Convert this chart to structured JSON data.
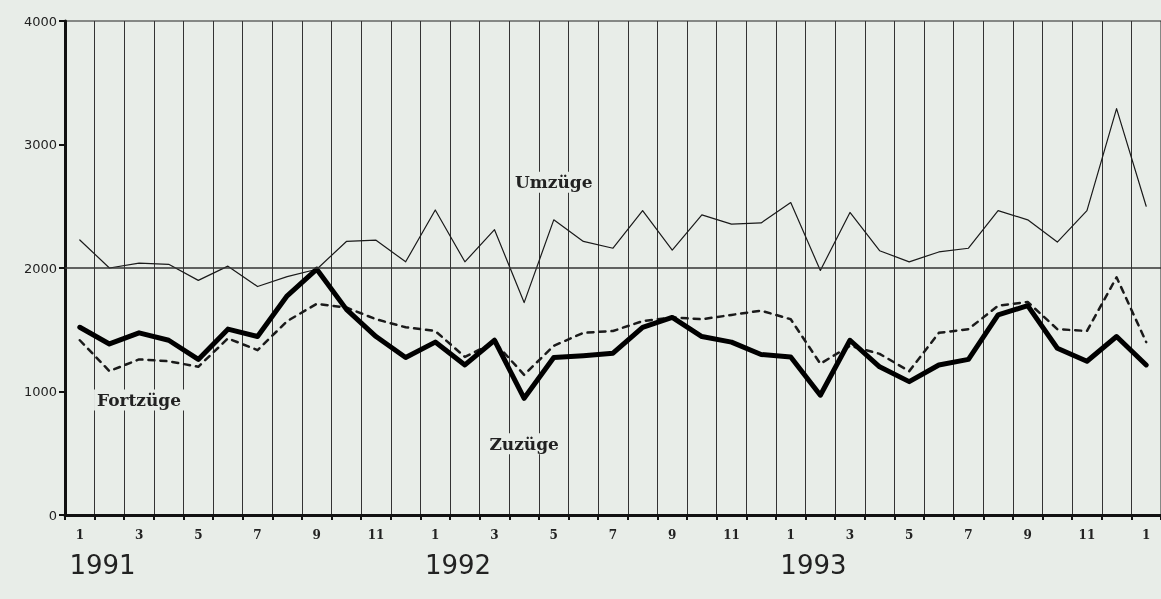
{
  "chart_data": {
    "type": "line",
    "categories": [
      "1",
      null,
      "3",
      null,
      "5",
      null,
      "7",
      null,
      "9",
      null,
      "11",
      null,
      "1",
      null,
      "3",
      null,
      "5",
      null,
      "7",
      null,
      "9",
      null,
      "11",
      null,
      "1",
      null,
      "3",
      null,
      "5",
      null,
      "7",
      null,
      "9",
      null,
      "11",
      null,
      "1"
    ],
    "series": [
      {
        "name": "Umzüge",
        "color": "#1a1a1a",
        "line_style": "solid",
        "values": [
          2227,
          2000,
          2040,
          2030,
          1900,
          2015,
          1850,
          1930,
          1990,
          2215,
          2225,
          2050,
          2470,
          2050,
          2310,
          1720,
          2390,
          2215,
          2160,
          2465,
          2145,
          2430,
          2355,
          2365,
          2530,
          1980,
          2450,
          2140,
          2050,
          2130,
          2160,
          2465,
          2390,
          2210,
          2465,
          3290,
          2500
        ]
      },
      {
        "name": "Fortzüge",
        "color": "#1a1a1a",
        "line_style": "dashed",
        "values": [
          1415,
          1165,
          1260,
          1245,
          1200,
          1430,
          1335,
          1570,
          1710,
          1680,
          1585,
          1520,
          1490,
          1280,
          1400,
          1135,
          1370,
          1475,
          1490,
          1570,
          1600,
          1585,
          1620,
          1655,
          1585,
          1225,
          1370,
          1305,
          1165,
          1475,
          1505,
          1695,
          1725,
          1505,
          1490,
          1925,
          1400
        ]
      },
      {
        "name": "Zuzüge",
        "color": "#000000",
        "line_style": "solid",
        "values": [
          1520,
          1385,
          1475,
          1415,
          1260,
          1505,
          1445,
          1775,
          1990,
          1665,
          1445,
          1275,
          1400,
          1215,
          1415,
          945,
          1275,
          1290,
          1310,
          1520,
          1600,
          1445,
          1400,
          1300,
          1280,
          970,
          1415,
          1200,
          1080,
          1215,
          1260,
          1620,
          1695,
          1350,
          1245,
          1445,
          1215
        ]
      }
    ],
    "ylim": [
      0,
      4000
    ],
    "yticks": [
      0,
      1000,
      2000,
      3000,
      4000
    ],
    "grid": "x",
    "legend": false,
    "marker": "none",
    "ref_lines": [
      {
        "axis": "y",
        "value": 2000
      }
    ],
    "annotations": [
      "1991",
      "1992",
      "1993"
    ]
  }
}
